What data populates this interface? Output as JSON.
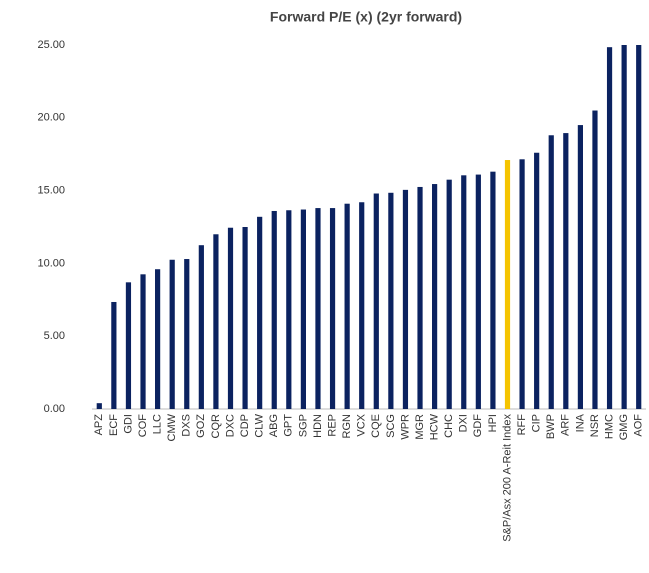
{
  "chart_data": {
    "type": "bar",
    "title": "Forward P/E (x) (2yr forward)",
    "categories": [
      "APZ",
      "ECF",
      "GDI",
      "COF",
      "LLC",
      "CMW",
      "DXS",
      "GOZ",
      "CQR",
      "DXC",
      "CDP",
      "CLW",
      "ABG",
      "GPT",
      "SGP",
      "HDN",
      "REP",
      "RGN",
      "VCX",
      "CQE",
      "SCG",
      "WPR",
      "MGR",
      "HCW",
      "CHC",
      "DXI",
      "GDF",
      "HPI",
      "S&P/Asx 200 A-Reit Index",
      "RFF",
      "CIP",
      "BWP",
      "ARF",
      "INA",
      "NSR",
      "HMC",
      "GMG",
      "AOF"
    ],
    "values": [
      0.4,
      7.35,
      8.7,
      9.25,
      9.6,
      10.25,
      10.3,
      11.25,
      12.0,
      12.45,
      12.5,
      13.2,
      13.6,
      13.65,
      13.7,
      13.8,
      13.8,
      14.1,
      14.2,
      14.8,
      14.85,
      15.05,
      15.25,
      15.45,
      15.75,
      16.05,
      16.1,
      16.3,
      17.1,
      17.15,
      17.6,
      18.8,
      18.95,
      19.5,
      20.5,
      24.85,
      25,
      25
    ],
    "colors": [
      "#0b2260",
      "#0b2260",
      "#0b2260",
      "#0b2260",
      "#0b2260",
      "#0b2260",
      "#0b2260",
      "#0b2260",
      "#0b2260",
      "#0b2260",
      "#0b2260",
      "#0b2260",
      "#0b2260",
      "#0b2260",
      "#0b2260",
      "#0b2260",
      "#0b2260",
      "#0b2260",
      "#0b2260",
      "#0b2260",
      "#0b2260",
      "#0b2260",
      "#0b2260",
      "#0b2260",
      "#0b2260",
      "#0b2260",
      "#0b2260",
      "#0b2260",
      "#f5c400",
      "#0b2260",
      "#0b2260",
      "#0b2260",
      "#0b2260",
      "#0b2260",
      "#0b2260",
      "#0b2260",
      "#0b2260",
      "#0b2260"
    ],
    "ylim": [
      0,
      25
    ],
    "yticks": [
      {
        "value": 0,
        "label": "0.00"
      },
      {
        "value": 5,
        "label": "5.00"
      },
      {
        "value": 10,
        "label": "10.00"
      },
      {
        "value": 15,
        "label": "15.00"
      },
      {
        "value": 20,
        "label": "20.00"
      },
      {
        "value": 25,
        "label": "25.00"
      }
    ],
    "grid": false
  }
}
